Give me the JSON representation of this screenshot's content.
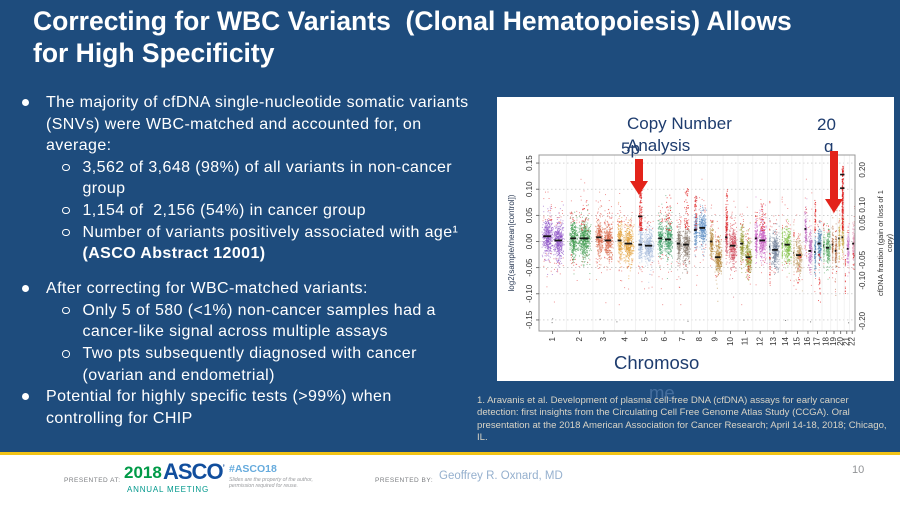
{
  "slide": {
    "title": "Correcting for WBC Variants  (Clonal Hematopoiesis) Allows for High Specificity",
    "bullets": [
      {
        "level": 1,
        "text": "The majority of cfDNA single-nucleotide somatic variants (SNVs) were WBC-matched and accounted for, on average:"
      },
      {
        "level": 2,
        "text": "3,562 of 3,648 (98%) of all variants in non-cancer group"
      },
      {
        "level": 2,
        "text": "1,154 of  2,156 (54%) in cancer group"
      },
      {
        "level": 2,
        "text": "Number of variants positively associated with age¹ (ASCO Abstract 12001)",
        "bold_part": "(ASCO Abstract 12001)"
      },
      {
        "level": 1,
        "text": "After correcting for WBC-matched variants:",
        "gap_before": true
      },
      {
        "level": 2,
        "text": "Only 5 of 580 (<1%) non-cancer samples had a cancer-like signal across multiple assays"
      },
      {
        "level": 2,
        "text": "Two pts subsequently diagnosed with cancer (ovarian and endometrial)"
      },
      {
        "level": 1,
        "text": "Potential for highly specific tests (>99%) when controlling for CHIP"
      }
    ],
    "citation": "1. Aravanis et al. Development of plasma cell-free DNA (cfDNA) assays for early cancer detection: first insights from the Circulating Cell Free Genome Atlas Study (CCGA). Oral presentation at the 2018 American Association for Cancer Research; April 14-18, 2018; Chicago, IL.",
    "background_color": "#1e4c7d"
  },
  "footer": {
    "presented_at_label": "PRESENTED AT:",
    "logo_year": "2018",
    "logo_org": "ASCO",
    "logo_sub": "ANNUAL MEETING",
    "hashtag": "#ASCO18",
    "disclaimer_line1": "Slides are the property of the author,",
    "disclaimer_line2": "permission required for reuse.",
    "presented_by_label": "PRESENTED BY:",
    "presenter": "Geoffrey R. Oxnard, MD",
    "page_number": "10",
    "divider_color": "#f2c317"
  },
  "chart_data": {
    "type": "scatter",
    "title": "Copy Number Analysis",
    "xlabel": "Chromosome",
    "xlabel_lines": [
      "Chromoso",
      "me"
    ],
    "ylabel": "log2(sample/mean[control])",
    "right_axis_title_lines": [
      "cfDNA fraction (gain or loss of 1",
      "copy)"
    ],
    "ylim": [
      -0.17,
      0.165
    ],
    "yticks": [
      "0.15",
      "0.10",
      "0.05",
      "0.00",
      "-0.05",
      "-0.10",
      "-0.15"
    ],
    "ytick_values": [
      0.15,
      0.1,
      0.05,
      0,
      -0.05,
      -0.1,
      -0.15
    ],
    "right_axis_ticks": [
      {
        "label": "0.20",
        "value": 0.137
      },
      {
        "label": "0.05 0.10",
        "value": 0.053
      },
      {
        "label": "-0.10 -0.05",
        "value": -0.055
      },
      {
        "label": "-0.20",
        "value": -0.152
      }
    ],
    "categories": [
      "1",
      "2",
      "3",
      "4",
      "5",
      "6",
      "7",
      "8",
      "9",
      "10",
      "11",
      "12",
      "13",
      "14",
      "15",
      "16",
      "17",
      "18",
      "19",
      "20",
      "21",
      "22"
    ],
    "chrom_rel_lengths": [
      249,
      243,
      198,
      191,
      181,
      171,
      159,
      146,
      141,
      136,
      135,
      134,
      115,
      107,
      102,
      90,
      83,
      80,
      59,
      63,
      48,
      51
    ],
    "arm_fractions": [
      0.5,
      0.4,
      0.45,
      0.35,
      0.35,
      0.4,
      0.4,
      0.35,
      0.35,
      0.3,
      0.4,
      0.3,
      0.17,
      0.17,
      0.17,
      0.4,
      0.35,
      0.25,
      0.45,
      0.45,
      0.25,
      0.25
    ],
    "arm_medians": [
      [
        0.01,
        0.002
      ],
      [
        0.006,
        0.006
      ],
      [
        0.008,
        0.002
      ],
      [
        0.002,
        -0.004
      ],
      [
        -0.006,
        -0.008
      ],
      [
        0.006,
        0.004
      ],
      [
        -0.004,
        -0.006
      ],
      [
        0.022,
        0.026
      ],
      [
        0.0,
        -0.03
      ],
      [
        0.008,
        -0.008
      ],
      [
        -0.004,
        -0.03
      ],
      [
        0.006,
        0.002
      ],
      [
        -0.01,
        -0.016
      ],
      [
        -0.004,
        -0.006
      ],
      [
        -0.022,
        -0.026
      ],
      [
        0.024,
        -0.018
      ],
      [
        -0.02,
        -0.004
      ],
      [
        -0.008,
        -0.012
      ],
      [
        -0.006,
        -0.018
      ],
      [
        0.006,
        0.008
      ],
      [
        -0.012,
        -0.014
      ],
      [
        0.0,
        -0.004
      ]
    ],
    "colors": [
      "#9055c8",
      "#3f9b4f",
      "#d96a4f",
      "#e2a23c",
      "#a9bcdc",
      "#44a06a",
      "#8b7d72",
      "#5f8fc4",
      "#b5893d",
      "#cf4a5a",
      "#93982f",
      "#c65ec2",
      "#75849b",
      "#84c24a",
      "#c3a06e",
      "#c06ec0",
      "#4a7fae",
      "#58a864",
      "#b06a42",
      "#caa84e",
      "#cc79c9",
      "#e89ab8"
    ],
    "outlier_color": "#e02020",
    "median_line_color": "#151515",
    "annotations": [
      {
        "label": "5p",
        "lines": [
          "5p"
        ],
        "chrom": 5,
        "arm": "p",
        "arrow": "red-down"
      },
      {
        "label": "20q",
        "lines": [
          "20",
          "q"
        ],
        "chrom": 20,
        "arm": "q",
        "arrow": "red-down"
      }
    ],
    "outlier_streaks": [
      {
        "chrom": 5,
        "arm": 0,
        "to": 0.125,
        "count": 150,
        "falloff": 1.45,
        "marks": [
          0.048
        ]
      },
      {
        "chrom": 20,
        "arm": 1,
        "to": 0.145,
        "count": 210,
        "falloff": 1.0,
        "marks": [
          0.102,
          0.128
        ]
      },
      {
        "chrom": 7,
        "arm": 1,
        "to": 0.105,
        "count": 48,
        "falloff": 1.3
      },
      {
        "chrom": 8,
        "arm": 0,
        "to": 0.09,
        "count": 42,
        "falloff": 1.3
      },
      {
        "chrom": 10,
        "arm": 0,
        "to": 0.1,
        "count": 54,
        "falloff": 1.3
      },
      {
        "chrom": 12,
        "arm": 1,
        "to": 0.08,
        "count": 34,
        "falloff": 1.3
      },
      {
        "chrom": 17,
        "arm": 0,
        "to": 0.085,
        "count": 38,
        "falloff": 1.3
      },
      {
        "chrom": 2,
        "arm": 1,
        "to": 0.08,
        "count": 26,
        "falloff": 1.3
      },
      {
        "chrom": 6,
        "arm": 1,
        "to": 0.09,
        "count": 34,
        "falloff": 1.3
      },
      {
        "chrom": 11,
        "arm": 1,
        "to": -0.07,
        "count": 24,
        "falloff": 1.3
      },
      {
        "chrom": 13,
        "arm": 0,
        "to": -0.08,
        "count": 19,
        "falloff": 1.3
      },
      {
        "chrom": 17,
        "arm": 1,
        "to": -0.12,
        "count": 24,
        "falloff": 1.3
      },
      {
        "chrom": 21,
        "arm": 0,
        "to": -0.1,
        "count": 18,
        "falloff": 1.3
      },
      {
        "chrom": 15,
        "arm": 1,
        "to": -0.08,
        "count": 18,
        "falloff": 1.3
      },
      {
        "chrom": 22,
        "arm": 1,
        "to": -0.06,
        "count": 12,
        "falloff": 1.3
      }
    ],
    "grid": true,
    "legend": false
  }
}
